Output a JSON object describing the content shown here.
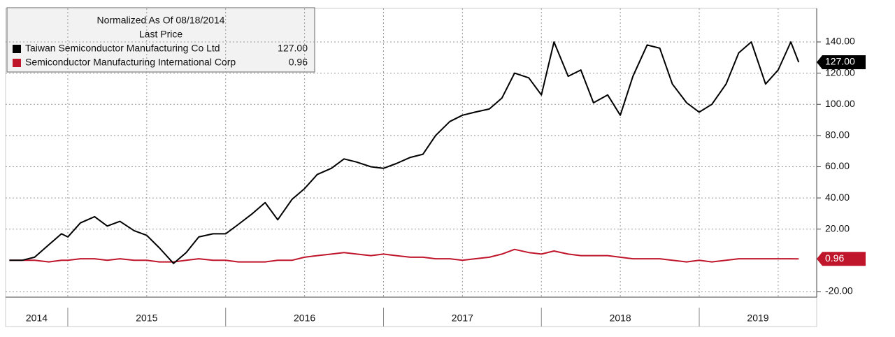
{
  "chart_data": {
    "type": "line",
    "legend_title": "Normalized As Of 08/18/2014",
    "legend_subtitle": "Last Price",
    "x": [
      2014.63,
      2014.71,
      2014.79,
      2014.88,
      2014.96,
      2015.0,
      2015.08,
      2015.17,
      2015.25,
      2015.33,
      2015.42,
      2015.5,
      2015.58,
      2015.67,
      2015.75,
      2015.83,
      2015.92,
      2016.0,
      2016.08,
      2016.17,
      2016.25,
      2016.33,
      2016.42,
      2016.5,
      2016.58,
      2016.67,
      2016.75,
      2016.83,
      2016.92,
      2017.0,
      2017.08,
      2017.17,
      2017.25,
      2017.33,
      2017.42,
      2017.5,
      2017.58,
      2017.67,
      2017.75,
      2017.83,
      2017.92,
      2018.0,
      2018.08,
      2018.17,
      2018.25,
      2018.33,
      2018.42,
      2018.5,
      2018.58,
      2018.67,
      2018.75,
      2018.83,
      2018.92,
      2019.0,
      2019.08,
      2019.17,
      2019.25,
      2019.33,
      2019.42,
      2019.5,
      2019.58,
      2019.63
    ],
    "series": [
      {
        "name": "Taiwan Semiconductor Manufacturing Co Ltd",
        "color": "#000000",
        "last_label": "127.00",
        "values": [
          0,
          0,
          2,
          10,
          17,
          15,
          24,
          28,
          22,
          25,
          19,
          16,
          8,
          -2,
          5,
          15,
          17,
          17,
          23,
          30,
          37,
          26,
          39,
          46,
          55,
          59,
          65,
          63,
          60,
          59,
          62,
          66,
          68,
          80,
          89,
          93,
          95,
          97,
          104,
          120,
          117,
          106,
          140,
          118,
          122,
          101,
          106,
          93,
          118,
          138,
          136,
          113,
          101,
          95,
          100,
          113,
          133,
          140,
          113,
          122,
          140,
          127
        ]
      },
      {
        "name": "Semiconductor Manufacturing International Corp",
        "color": "#c0162c",
        "last_label": "0.96",
        "values": [
          0,
          0,
          0,
          -1,
          0,
          0,
          1,
          1,
          0,
          1,
          0,
          0,
          -1,
          -1,
          0,
          1,
          0,
          0,
          -1,
          -1,
          -1,
          0,
          0,
          2,
          3,
          4,
          5,
          4,
          3,
          4,
          3,
          2,
          2,
          1,
          1,
          0,
          1,
          2,
          4,
          7,
          5,
          4,
          6,
          4,
          3,
          3,
          3,
          2,
          1,
          1,
          1,
          0,
          -1,
          0,
          -1,
          0,
          1,
          1,
          1,
          1,
          1,
          0.96
        ]
      }
    ],
    "xlim": [
      2014.606,
      2019.744
    ],
    "xticks": [
      2015,
      2015.5,
      2016,
      2016.5,
      2017,
      2017.5,
      2018,
      2018.5,
      2019,
      2019.5
    ],
    "year_labels": [
      2014,
      2015,
      2016,
      2017,
      2018,
      2019
    ],
    "ylim": [
      -23.6,
      161.5
    ],
    "yticks": [
      {
        "value": -20,
        "label": "-20.00"
      },
      {
        "value": 20,
        "label": "20.00"
      },
      {
        "value": 40,
        "label": "40.00"
      },
      {
        "value": 60,
        "label": "60.00"
      },
      {
        "value": 80,
        "label": "80.00"
      },
      {
        "value": 100,
        "label": "100.00"
      },
      {
        "value": 120,
        "label": "120.00"
      },
      {
        "value": 140,
        "label": "140.00"
      }
    ],
    "grid": true
  }
}
